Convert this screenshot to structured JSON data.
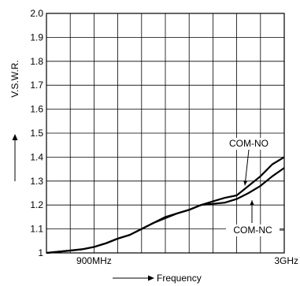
{
  "chart_data": {
    "type": "line",
    "ylabel": "V.S.W.R.",
    "xlabel": "Frequency",
    "x_ticks": [
      "900MHz",
      "3GHz"
    ],
    "y_ticks": [
      "1",
      "1.1",
      "1.2",
      "1.3",
      "1.4",
      "1.5",
      "1.6",
      "1.7",
      "1.8",
      "1.9",
      "2.0"
    ],
    "ylim": [
      1,
      2.0
    ],
    "xlim": [
      0,
      10
    ],
    "grid": true,
    "x_tick_positions": [
      2,
      10
    ],
    "series": [
      {
        "name": "COM-NO",
        "x": [
          0,
          0.5,
          1,
          1.5,
          2,
          2.5,
          3,
          3.5,
          4,
          4.5,
          5,
          5.5,
          6,
          6.5,
          7,
          7.5,
          8,
          8.5,
          9,
          9.5,
          10
        ],
        "y": [
          1.0,
          1.005,
          1.01,
          1.015,
          1.025,
          1.04,
          1.06,
          1.075,
          1.1,
          1.125,
          1.15,
          1.165,
          1.18,
          1.2,
          1.215,
          1.23,
          1.24,
          1.28,
          1.32,
          1.37,
          1.4
        ]
      },
      {
        "name": "COM-NC",
        "x": [
          0,
          0.5,
          1,
          1.5,
          2,
          2.5,
          3,
          3.5,
          4,
          4.5,
          5,
          5.5,
          6,
          6.5,
          7,
          7.5,
          8,
          8.5,
          9,
          9.5,
          10
        ],
        "y": [
          1.0,
          1.005,
          1.01,
          1.015,
          1.025,
          1.04,
          1.06,
          1.075,
          1.1,
          1.125,
          1.145,
          1.165,
          1.18,
          1.2,
          1.205,
          1.21,
          1.225,
          1.25,
          1.28,
          1.32,
          1.355
        ]
      }
    ]
  }
}
